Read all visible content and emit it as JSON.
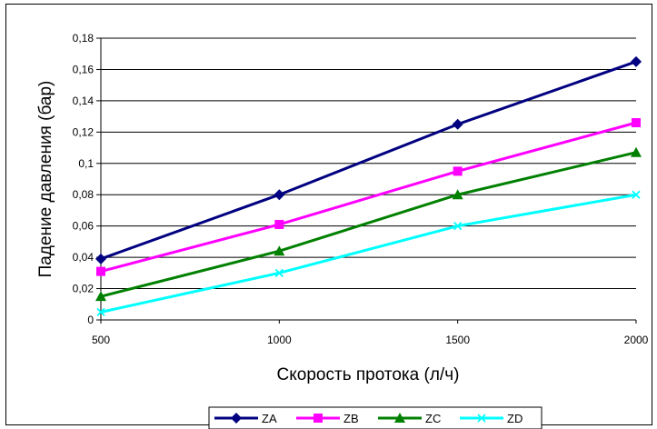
{
  "chart_data": {
    "type": "line",
    "title": "",
    "xlabel": "Скорость протока (л/ч)",
    "ylabel": "Падение давления (бар)",
    "categories": [
      "500",
      "1000",
      "1500",
      "2000"
    ],
    "x": [
      500,
      1000,
      1500,
      2000
    ],
    "ylim": [
      0,
      0.18
    ],
    "yticks": [
      0,
      0.02,
      0.04,
      0.06,
      0.08,
      0.1,
      0.12,
      0.14,
      0.16,
      0.18
    ],
    "ytick_labels": [
      "0",
      "0,02",
      "0,04",
      "0,06",
      "0,08",
      "0,1",
      "0,12",
      "0,14",
      "0,16",
      "0,18"
    ],
    "grid": true,
    "legend_position": "bottom",
    "series": [
      {
        "name": "ZA",
        "values": [
          0.039,
          0.08,
          0.125,
          0.165
        ],
        "color": "#000080",
        "marker": "diamond"
      },
      {
        "name": "ZB",
        "values": [
          0.031,
          0.061,
          0.095,
          0.126
        ],
        "color": "#ff00ff",
        "marker": "square"
      },
      {
        "name": "ZC",
        "values": [
          0.015,
          0.044,
          0.08,
          0.107
        ],
        "color": "#008000",
        "marker": "triangle"
      },
      {
        "name": "ZD",
        "values": [
          0.005,
          0.03,
          0.06,
          0.08
        ],
        "color": "#00ffff",
        "marker": "cross"
      }
    ]
  }
}
